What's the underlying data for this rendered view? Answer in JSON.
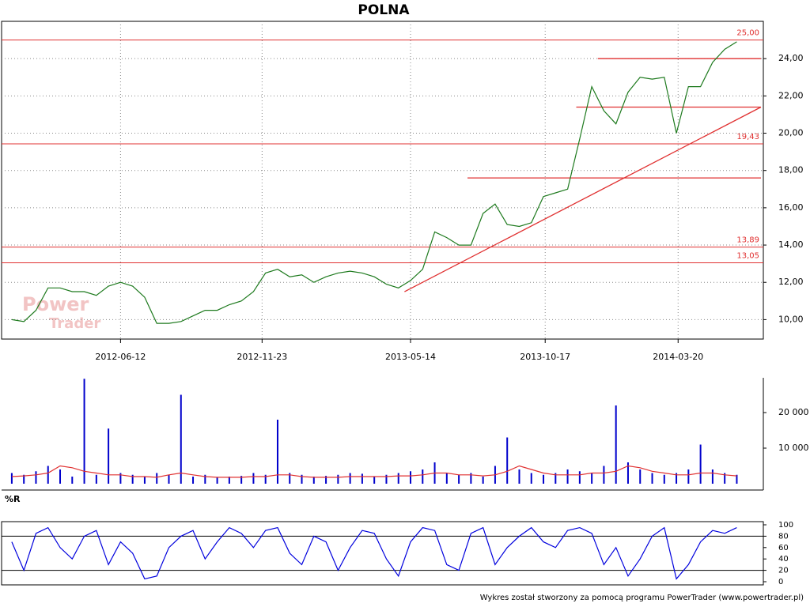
{
  "chart_data": [
    {
      "type": "line",
      "title": "POLNA",
      "x": [
        "2012-02-07",
        "2012-02-21",
        "2012-03-06",
        "2012-03-20",
        "2012-04-03",
        "2012-04-17",
        "2012-05-01",
        "2012-05-15",
        "2012-05-29",
        "2012-06-12",
        "2012-06-26",
        "2012-07-10",
        "2012-07-24",
        "2012-08-07",
        "2012-08-21",
        "2012-09-04",
        "2012-09-18",
        "2012-10-02",
        "2012-10-16",
        "2012-10-30",
        "2012-11-13",
        "2012-11-27",
        "2012-12-11",
        "2012-12-25",
        "2013-01-08",
        "2013-01-22",
        "2013-02-05",
        "2013-02-19",
        "2013-03-05",
        "2013-03-19",
        "2013-04-02",
        "2013-04-16",
        "2013-04-30",
        "2013-05-14",
        "2013-05-28",
        "2013-06-11",
        "2013-06-25",
        "2013-07-09",
        "2013-07-23",
        "2013-08-06",
        "2013-08-20",
        "2013-09-03",
        "2013-09-17",
        "2013-10-01",
        "2013-10-15",
        "2013-10-29",
        "2013-11-12",
        "2013-11-26",
        "2013-12-10",
        "2013-12-24",
        "2014-01-07",
        "2014-01-21",
        "2014-02-04",
        "2014-02-18",
        "2014-03-04",
        "2014-03-18",
        "2014-04-01",
        "2014-04-15",
        "2014-04-29",
        "2014-05-13",
        "2014-05-27"
      ],
      "series": [
        {
          "color": "#1e7a1e",
          "values": [
            10.0,
            9.9,
            10.5,
            11.7,
            11.7,
            11.5,
            11.5,
            11.3,
            11.8,
            12.0,
            11.8,
            11.2,
            9.8,
            9.8,
            9.9,
            10.2,
            10.5,
            10.5,
            10.8,
            11.0,
            11.5,
            12.5,
            12.7,
            12.3,
            12.4,
            12.0,
            12.3,
            12.5,
            12.6,
            12.5,
            12.3,
            11.9,
            11.7,
            12.1,
            12.7,
            14.7,
            14.4,
            14.0,
            14.0,
            15.7,
            16.2,
            15.1,
            15.0,
            15.2,
            16.6,
            16.8,
            17.0,
            19.7,
            22.5,
            21.2,
            20.5,
            22.2,
            23.0,
            22.9,
            23.0,
            20.0,
            22.5,
            22.5,
            23.8,
            24.5,
            24.9
          ]
        }
      ],
      "xlim": [
        "2012-01-28",
        "2014-06-24"
      ],
      "xticks": [
        "2012-06-12",
        "2012-11-23",
        "2013-05-14",
        "2013-10-17",
        "2014-03-20"
      ],
      "ylim": [
        9,
        26
      ],
      "yticks": [
        {
          "value": 10,
          "label": "10,00"
        },
        {
          "value": 12,
          "label": "12,00"
        },
        {
          "value": 14,
          "label": "14,00"
        },
        {
          "value": 16,
          "label": "16,00"
        },
        {
          "value": 18,
          "label": "18,00"
        },
        {
          "value": 20,
          "label": "20,00"
        },
        {
          "value": 22,
          "label": "22,00"
        },
        {
          "value": 24,
          "label": "24,00"
        }
      ],
      "grid": true,
      "levels": {
        "color": "#e03030",
        "values": [
          25,
          19.43,
          13.89,
          13.05
        ],
        "value_labels": [
          "25,00",
          "19,43",
          "13,89",
          "13,05"
        ]
      },
      "segments": [
        {
          "color": "#e03030",
          "x": [
            "2013-12-17",
            "2014-06-24"
          ],
          "values": [
            24,
            24
          ]
        },
        {
          "color": "#e03030",
          "x": [
            "2013-11-22",
            "2014-06-24"
          ],
          "values": [
            21.4,
            21.4
          ]
        },
        {
          "color": "#e03030",
          "x": [
            "2013-07-19",
            "2014-06-24"
          ],
          "values": [
            17.6,
            17.6
          ]
        },
        {
          "color": "#e03030",
          "x": [
            "2013-05-07",
            "2014-06-24"
          ],
          "values": [
            11.5,
            21.4
          ]
        }
      ],
      "watermark": [
        "Power",
        "Trader"
      ]
    },
    {
      "type": "bar",
      "x": [
        "2012-02-07",
        "2012-02-21",
        "2012-03-06",
        "2012-03-20",
        "2012-04-03",
        "2012-04-17",
        "2012-05-01",
        "2012-05-15",
        "2012-05-29",
        "2012-06-12",
        "2012-06-26",
        "2012-07-10",
        "2012-07-24",
        "2012-08-07",
        "2012-08-21",
        "2012-09-04",
        "2012-09-18",
        "2012-10-02",
        "2012-10-16",
        "2012-10-30",
        "2012-11-13",
        "2012-11-27",
        "2012-12-11",
        "2012-12-25",
        "2013-01-08",
        "2013-01-22",
        "2013-02-05",
        "2013-02-19",
        "2013-03-05",
        "2013-03-19",
        "2013-04-02",
        "2013-04-16",
        "2013-04-30",
        "2013-05-14",
        "2013-05-28",
        "2013-06-11",
        "2013-06-25",
        "2013-07-09",
        "2013-07-23",
        "2013-08-06",
        "2013-08-20",
        "2013-09-03",
        "2013-09-17",
        "2013-10-01",
        "2013-10-15",
        "2013-10-29",
        "2013-11-12",
        "2013-11-26",
        "2013-12-10",
        "2013-12-24",
        "2014-01-07",
        "2014-01-21",
        "2014-02-04",
        "2014-02-18",
        "2014-03-04",
        "2014-03-18",
        "2014-04-01",
        "2014-04-15",
        "2014-04-29",
        "2014-05-13",
        "2014-05-27"
      ],
      "series": [
        {
          "color": "#0000cc",
          "values": [
            3000,
            2500,
            3500,
            5000,
            4000,
            2000,
            29500,
            2500,
            15500,
            3000,
            2500,
            2000,
            3000,
            2500,
            25000,
            2000,
            2500,
            1800,
            2000,
            2200,
            3000,
            2500,
            18000,
            3000,
            2500,
            2000,
            2200,
            2500,
            3000,
            2800,
            2000,
            2500,
            3000,
            3500,
            4000,
            6000,
            3000,
            2500,
            3000,
            2000,
            5000,
            13000,
            4000,
            3000,
            2500,
            3000,
            4000,
            3500,
            3000,
            5000,
            22000,
            6000,
            4000,
            3000,
            2500,
            3000,
            4000,
            11000,
            4000,
            3000,
            2500
          ]
        },
        {
          "type": "line",
          "color": "#e03030",
          "values": [
            2000,
            2200,
            2500,
            3000,
            5000,
            4500,
            3500,
            3000,
            2500,
            2500,
            2000,
            2000,
            1800,
            2500,
            3000,
            2500,
            2000,
            1800,
            1800,
            1800,
            2000,
            2000,
            2500,
            2500,
            2000,
            1800,
            1800,
            1800,
            2000,
            2000,
            2000,
            2000,
            2200,
            2200,
            2500,
            3000,
            3000,
            2500,
            2500,
            2200,
            2500,
            3500,
            5000,
            4000,
            3000,
            2500,
            2500,
            2500,
            3000,
            3000,
            3500,
            5000,
            4500,
            3500,
            3000,
            2500,
            2500,
            3000,
            3000,
            2500,
            2200
          ]
        }
      ],
      "xlim": [
        "2012-01-28",
        "2014-06-24"
      ],
      "ylim": [
        0,
        30000
      ],
      "yticks": [
        {
          "value": 10000,
          "label": "10 000"
        },
        {
          "value": 20000,
          "label": "20 000"
        }
      ]
    },
    {
      "type": "line",
      "title": "%R",
      "x": [
        "2012-02-07",
        "2012-02-21",
        "2012-03-06",
        "2012-03-20",
        "2012-04-03",
        "2012-04-17",
        "2012-05-01",
        "2012-05-15",
        "2012-05-29",
        "2012-06-12",
        "2012-06-26",
        "2012-07-10",
        "2012-07-24",
        "2012-08-07",
        "2012-08-21",
        "2012-09-04",
        "2012-09-18",
        "2012-10-02",
        "2012-10-16",
        "2012-10-30",
        "2012-11-13",
        "2012-11-27",
        "2012-12-11",
        "2012-12-25",
        "2013-01-08",
        "2013-01-22",
        "2013-02-05",
        "2013-02-19",
        "2013-03-05",
        "2013-03-19",
        "2013-04-02",
        "2013-04-16",
        "2013-04-30",
        "2013-05-14",
        "2013-05-28",
        "2013-06-11",
        "2013-06-25",
        "2013-07-09",
        "2013-07-23",
        "2013-08-06",
        "2013-08-20",
        "2013-09-03",
        "2013-09-17",
        "2013-10-01",
        "2013-10-15",
        "2013-10-29",
        "2013-11-12",
        "2013-11-26",
        "2013-12-10",
        "2013-12-24",
        "2014-01-07",
        "2014-01-21",
        "2014-02-04",
        "2014-02-18",
        "2014-03-04",
        "2014-03-18",
        "2014-04-01",
        "2014-04-15",
        "2014-04-29",
        "2014-05-13",
        "2014-05-27"
      ],
      "series": [
        {
          "color": "#0000dd",
          "values": [
            70,
            20,
            85,
            95,
            60,
            40,
            80,
            90,
            30,
            70,
            50,
            5,
            10,
            60,
            80,
            90,
            40,
            70,
            95,
            85,
            60,
            90,
            95,
            50,
            30,
            80,
            70,
            20,
            60,
            90,
            85,
            40,
            10,
            70,
            95,
            90,
            30,
            20,
            85,
            95,
            30,
            60,
            80,
            95,
            70,
            60,
            90,
            95,
            85,
            30,
            60,
            10,
            40,
            80,
            95,
            5,
            30,
            70,
            90,
            85,
            95
          ]
        }
      ],
      "xlim": [
        "2012-01-28",
        "2014-06-24"
      ],
      "ylim": [
        0,
        100
      ],
      "yticks": [
        0,
        20,
        40,
        60,
        80,
        100
      ],
      "hlines": [
        20,
        80
      ]
    }
  ],
  "footer": "Wykres został stworzony za pomocą programu PowerTrader (www.powertrader.pl)"
}
